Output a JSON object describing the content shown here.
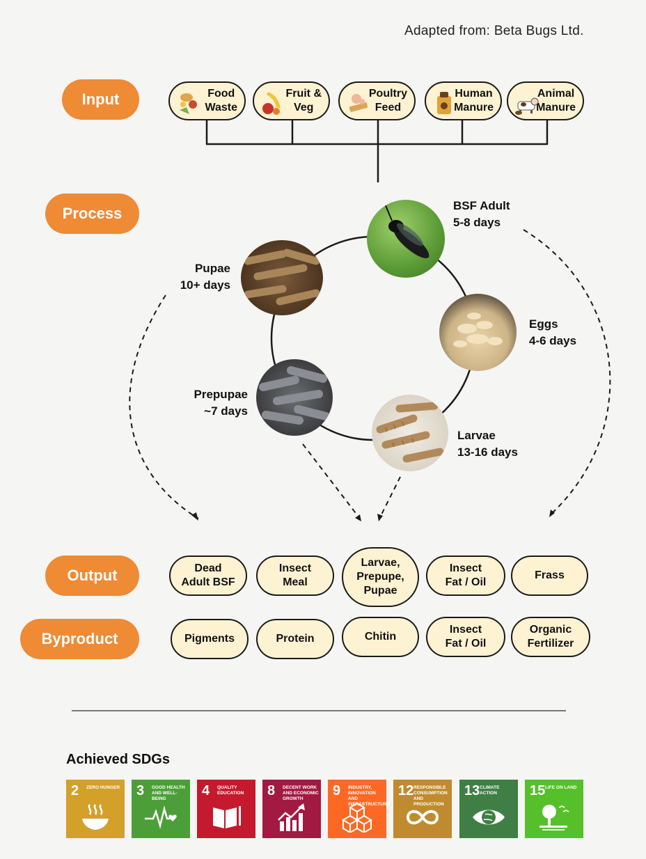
{
  "source": "Adapted from: Beta Bugs Ltd.",
  "stages": {
    "input": "Input",
    "process": "Process",
    "output": "Output",
    "byproduct": "Byproduct"
  },
  "inputs": [
    {
      "label": "Food\nWaste",
      "icon": "food-waste-icon"
    },
    {
      "label": "Fruit &\nVeg",
      "icon": "fruit-veg-icon"
    },
    {
      "label": "Poultry\nFeed",
      "icon": "poultry-feed-icon"
    },
    {
      "label": "Human\nManure",
      "icon": "human-manure-icon"
    },
    {
      "label": "Animal\nManure",
      "icon": "animal-manure-icon"
    }
  ],
  "lifecycle": {
    "adult": {
      "name": "BSF Adult",
      "days": "5-8 days"
    },
    "eggs": {
      "name": "Eggs",
      "days": "4-6 days"
    },
    "larvae": {
      "name": "Larvae",
      "days": "13-16 days"
    },
    "prepupae": {
      "name": "Prepupae",
      "days": "~7 days"
    },
    "pupae": {
      "name": "Pupae",
      "days": "10+ days"
    }
  },
  "outputs": [
    "Dead\nAdult BSF",
    "Insect\nMeal",
    "Larvae,\nPrepupe,\nPupae",
    "Insect\nFat / Oil",
    "Frass"
  ],
  "byproducts": [
    "Pigments",
    "Protein",
    "Chitin",
    "Insect\nFat / Oil",
    "Organic\nFertilizer"
  ],
  "sdg_heading": "Achieved SDGs",
  "sdgs": [
    {
      "num": "2",
      "title": "Zero Hunger",
      "color": "#d3a029",
      "icon": "bowl-icon"
    },
    {
      "num": "3",
      "title": "Good Health and Well-Being",
      "color": "#4c9f38",
      "icon": "heartbeat-icon"
    },
    {
      "num": "4",
      "title": "Quality Education",
      "color": "#c5192d",
      "icon": "book-icon"
    },
    {
      "num": "8",
      "title": "Decent Work and Economic Growth",
      "color": "#a21942",
      "icon": "growth-chart-icon"
    },
    {
      "num": "9",
      "title": "Industry, Innovation and Infrastructure",
      "color": "#fd6925",
      "icon": "cubes-icon"
    },
    {
      "num": "12",
      "title": "Responsible Consumption and Production",
      "color": "#bf8b2e",
      "icon": "infinity-icon"
    },
    {
      "num": "13",
      "title": "Climate Action",
      "color": "#3f7e44",
      "icon": "eye-globe-icon"
    },
    {
      "num": "15",
      "title": "Life on Land",
      "color": "#56c02b",
      "icon": "tree-icon"
    }
  ]
}
